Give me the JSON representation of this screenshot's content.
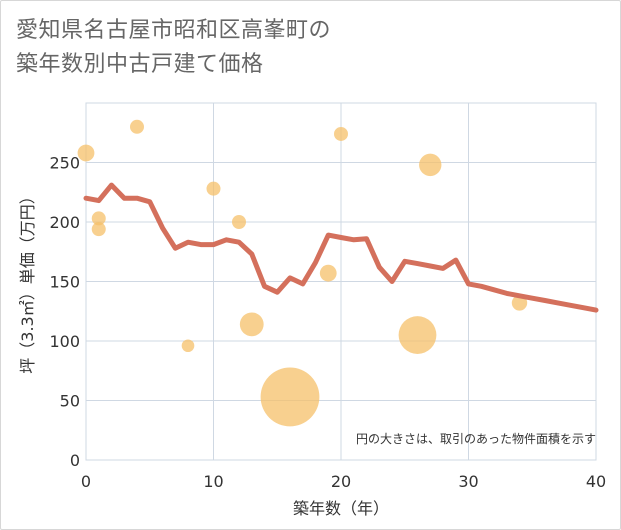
{
  "chart_data": {
    "type": "scatter",
    "title_lines": [
      "愛知県名古屋市昭和区高峯町の",
      "築年数別中古戸建て価格"
    ],
    "xlabel": "築年数（年）",
    "ylabel": "坪（3.3㎡）単価（万円）",
    "xlim": [
      0,
      40
    ],
    "ylim": [
      0,
      300
    ],
    "x_ticks": [
      0,
      10,
      20,
      30,
      40
    ],
    "y_ticks": [
      0,
      50,
      100,
      150,
      200,
      250
    ],
    "grid": true,
    "note": "円の大きさは、取引のあった物件面積を示す",
    "colors": {
      "bubble": "#f5c06a",
      "line": "#d4705c",
      "grid": "#cfd8e3"
    },
    "scatter": [
      {
        "x": 0,
        "y": 258,
        "size": 1.2
      },
      {
        "x": 1,
        "y": 203,
        "size": 1.0
      },
      {
        "x": 1,
        "y": 194,
        "size": 1.0
      },
      {
        "x": 4,
        "y": 280,
        "size": 1.0
      },
      {
        "x": 8,
        "y": 96,
        "size": 0.9
      },
      {
        "x": 10,
        "y": 228,
        "size": 1.0
      },
      {
        "x": 12,
        "y": 200,
        "size": 1.0
      },
      {
        "x": 13,
        "y": 114,
        "size": 1.7
      },
      {
        "x": 16,
        "y": 53,
        "size": 4.2
      },
      {
        "x": 19,
        "y": 157,
        "size": 1.2
      },
      {
        "x": 20,
        "y": 274,
        "size": 1.0
      },
      {
        "x": 26,
        "y": 105,
        "size": 2.7
      },
      {
        "x": 27,
        "y": 248,
        "size": 1.6
      },
      {
        "x": 34,
        "y": 132,
        "size": 1.1
      }
    ],
    "line": {
      "x": [
        0,
        1,
        2,
        3,
        4,
        5,
        6,
        7,
        8,
        9,
        10,
        11,
        12,
        13,
        14,
        15,
        16,
        17,
        18,
        19,
        20,
        21,
        22,
        23,
        24,
        25,
        26,
        27,
        28,
        29,
        30,
        31,
        32,
        33,
        34,
        35,
        36,
        37,
        38,
        39,
        40
      ],
      "y": [
        220,
        218,
        231,
        220,
        220,
        217,
        195,
        178,
        183,
        181,
        181,
        185,
        183,
        173,
        146,
        141,
        153,
        148,
        166,
        189,
        187,
        185,
        186,
        162,
        150,
        167,
        165,
        163,
        161,
        168,
        148,
        146,
        143,
        140,
        138,
        136,
        134,
        132,
        130,
        128,
        126
      ]
    }
  }
}
